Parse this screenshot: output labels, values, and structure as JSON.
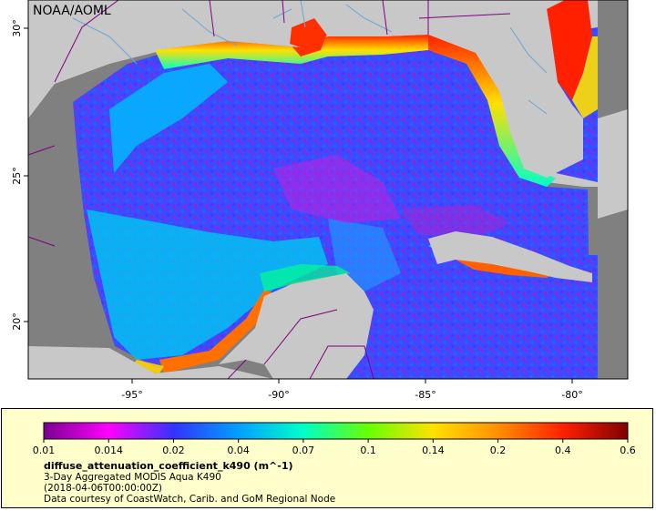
{
  "map": {
    "credit": "NOAA/AOML",
    "lon_ticks": [
      "-95°",
      "-90°",
      "-85°",
      "-80°"
    ],
    "lat_ticks": [
      "30°",
      "25°",
      "20°"
    ],
    "colors": {
      "land": "#c8c8c8",
      "no_data": "#808080",
      "coast": "#6aa6d6",
      "border": "#800080"
    }
  },
  "legend": {
    "ticks": [
      "0.01",
      "0.014",
      "0.02",
      "0.04",
      "0.07",
      "0.1",
      "0.14",
      "0.2",
      "0.4",
      "0.6"
    ],
    "variable": "diffuse_attenuation_coefficient_k490 (m^-1)",
    "product": "3-Day Aggregated MODIS Aqua K490",
    "time": "(2018-04-06T00:00:00Z)",
    "source": "Data courtesy of CoastWatch, Carib. and GoM Regional Node",
    "background": "#ffffcc",
    "ramp": [
      "#7a0090",
      "#ff00ff",
      "#3333ff",
      "#00a0ff",
      "#00ffc8",
      "#66ff00",
      "#ffe000",
      "#ff9000",
      "#ff2000",
      "#800000"
    ]
  }
}
